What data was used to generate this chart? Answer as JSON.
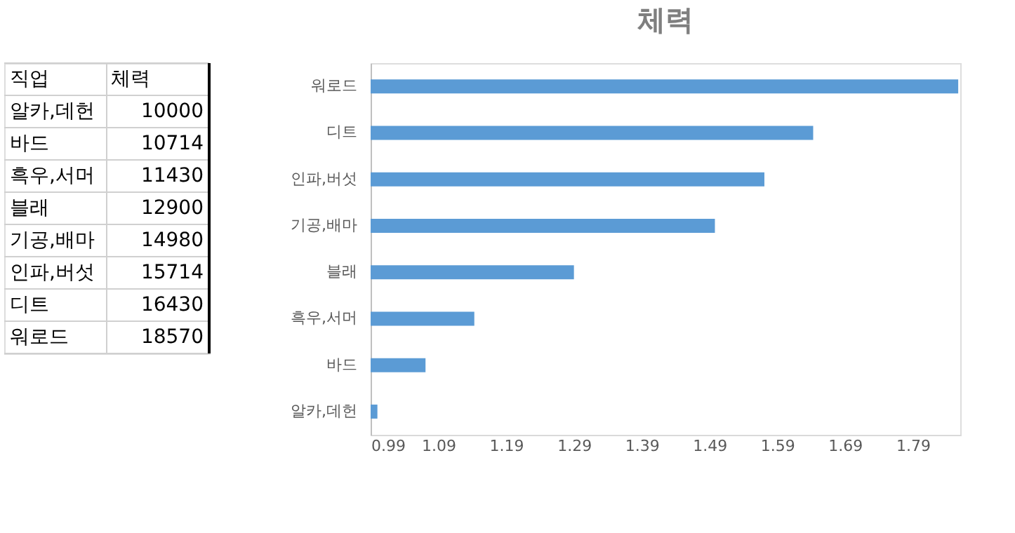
{
  "chart_data": [
    {
      "type": "other",
      "annotations": [
        "직업",
        "체력"
      ],
      "categories": [
        "알카,데헌",
        "바드",
        "흑우,서머",
        "블래",
        "기공,배마",
        "인파,버섯",
        "디트",
        "워로드"
      ],
      "values": [
        10000,
        10714,
        11430,
        12900,
        14980,
        15714,
        16430,
        18570
      ],
      "data_labels": true
    },
    {
      "type": "bar",
      "orientation": "horizontal",
      "title": "체력",
      "categories": [
        "워로드",
        "디트",
        "인파,버섯",
        "기공,배마",
        "블래",
        "흑우,서머",
        "바드",
        "알카,데헌"
      ],
      "values": [
        1.857,
        1.643,
        1.571,
        1.498,
        1.29,
        1.143,
        1.071,
        1.0
      ],
      "color": "#5b9bd5",
      "xlim": [
        0.99,
        1.86
      ],
      "xticks": [
        0.99,
        1.09,
        1.19,
        1.29,
        1.39,
        1.49,
        1.59,
        1.69,
        1.79
      ],
      "grid": false
    }
  ]
}
